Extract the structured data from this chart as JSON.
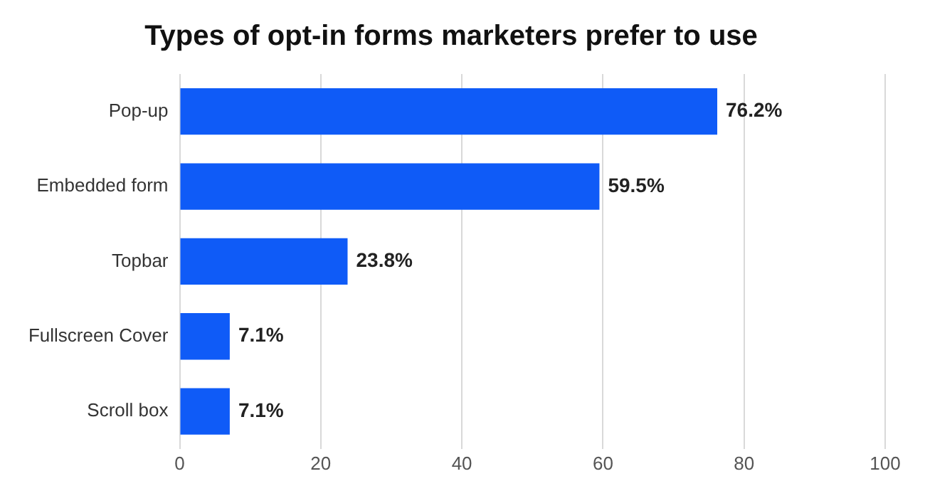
{
  "chart_data": {
    "type": "bar",
    "orientation": "horizontal",
    "title": "Types of opt-in forms marketers prefer to use",
    "categories": [
      "Pop-up",
      "Embedded form",
      "Topbar",
      "Fullscreen Cover",
      "Scroll box"
    ],
    "values": [
      76.2,
      59.5,
      23.8,
      7.1,
      7.1
    ],
    "value_labels": [
      "76.2%",
      "59.5%",
      "23.8%",
      "7.1%",
      "7.1%"
    ],
    "color": "#0f5bf7",
    "xlim": [
      0,
      100
    ],
    "xticks": [
      0,
      20,
      40,
      60,
      80,
      100
    ],
    "grid": "x",
    "legend": false
  }
}
